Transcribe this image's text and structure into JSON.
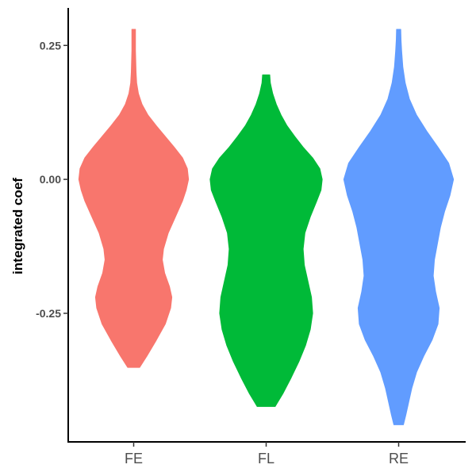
{
  "chart_data": {
    "type": "violin",
    "title": "",
    "xlabel": "",
    "ylabel": "integrated coef",
    "ylim": [
      -0.49,
      0.32
    ],
    "yticks": [
      {
        "value": 0.25,
        "label": "0.25"
      },
      {
        "value": 0.0,
        "label": "0.00"
      },
      {
        "value": -0.25,
        "label": "-0.25"
      }
    ],
    "grid": false,
    "legend": "none",
    "categories": [
      "FE",
      "FL",
      "RE"
    ],
    "series": [
      {
        "category": "FE",
        "color": "#F8766D",
        "profile": [
          [
            -0.351,
            0.1
          ],
          [
            -0.33,
            0.22
          ],
          [
            -0.3,
            0.38
          ],
          [
            -0.27,
            0.53
          ],
          [
            -0.24,
            0.62
          ],
          [
            -0.22,
            0.64
          ],
          [
            -0.2,
            0.6
          ],
          [
            -0.175,
            0.52
          ],
          [
            -0.15,
            0.48
          ],
          [
            -0.13,
            0.5
          ],
          [
            -0.1,
            0.58
          ],
          [
            -0.07,
            0.7
          ],
          [
            -0.04,
            0.82
          ],
          [
            -0.02,
            0.88
          ],
          [
            0.0,
            0.92
          ],
          [
            0.02,
            0.9
          ],
          [
            0.04,
            0.82
          ],
          [
            0.06,
            0.68
          ],
          [
            0.08,
            0.53
          ],
          [
            0.1,
            0.38
          ],
          [
            0.12,
            0.24
          ],
          [
            0.14,
            0.14
          ],
          [
            0.16,
            0.08
          ],
          [
            0.18,
            0.05
          ],
          [
            0.2,
            0.04
          ],
          [
            0.22,
            0.035
          ],
          [
            0.24,
            0.03
          ],
          [
            0.26,
            0.03
          ],
          [
            0.28,
            0.03
          ]
        ]
      },
      {
        "category": "FL",
        "color": "#00BA38",
        "profile": [
          [
            -0.424,
            0.15
          ],
          [
            -0.4,
            0.28
          ],
          [
            -0.37,
            0.42
          ],
          [
            -0.34,
            0.55
          ],
          [
            -0.31,
            0.66
          ],
          [
            -0.28,
            0.74
          ],
          [
            -0.25,
            0.78
          ],
          [
            -0.22,
            0.76
          ],
          [
            -0.19,
            0.7
          ],
          [
            -0.16,
            0.64
          ],
          [
            -0.13,
            0.62
          ],
          [
            -0.1,
            0.65
          ],
          [
            -0.07,
            0.74
          ],
          [
            -0.04,
            0.85
          ],
          [
            -0.02,
            0.92
          ],
          [
            0.0,
            0.94
          ],
          [
            0.02,
            0.9
          ],
          [
            0.04,
            0.78
          ],
          [
            0.06,
            0.62
          ],
          [
            0.08,
            0.48
          ],
          [
            0.1,
            0.35
          ],
          [
            0.12,
            0.25
          ],
          [
            0.14,
            0.17
          ],
          [
            0.16,
            0.11
          ],
          [
            0.18,
            0.07
          ],
          [
            0.195,
            0.06
          ]
        ]
      },
      {
        "category": "RE",
        "color": "#619CFF",
        "profile": [
          [
            -0.458,
            0.08
          ],
          [
            -0.44,
            0.12
          ],
          [
            -0.42,
            0.16
          ],
          [
            -0.39,
            0.22
          ],
          [
            -0.36,
            0.3
          ],
          [
            -0.33,
            0.42
          ],
          [
            -0.3,
            0.56
          ],
          [
            -0.27,
            0.66
          ],
          [
            -0.24,
            0.68
          ],
          [
            -0.21,
            0.62
          ],
          [
            -0.18,
            0.58
          ],
          [
            -0.15,
            0.6
          ],
          [
            -0.12,
            0.65
          ],
          [
            -0.09,
            0.7
          ],
          [
            -0.06,
            0.77
          ],
          [
            -0.03,
            0.86
          ],
          [
            0.0,
            0.92
          ],
          [
            0.03,
            0.84
          ],
          [
            0.06,
            0.66
          ],
          [
            0.09,
            0.47
          ],
          [
            0.12,
            0.3
          ],
          [
            0.15,
            0.18
          ],
          [
            0.18,
            0.11
          ],
          [
            0.21,
            0.07
          ],
          [
            0.24,
            0.05
          ],
          [
            0.26,
            0.04
          ],
          [
            0.28,
            0.035
          ]
        ]
      }
    ]
  }
}
